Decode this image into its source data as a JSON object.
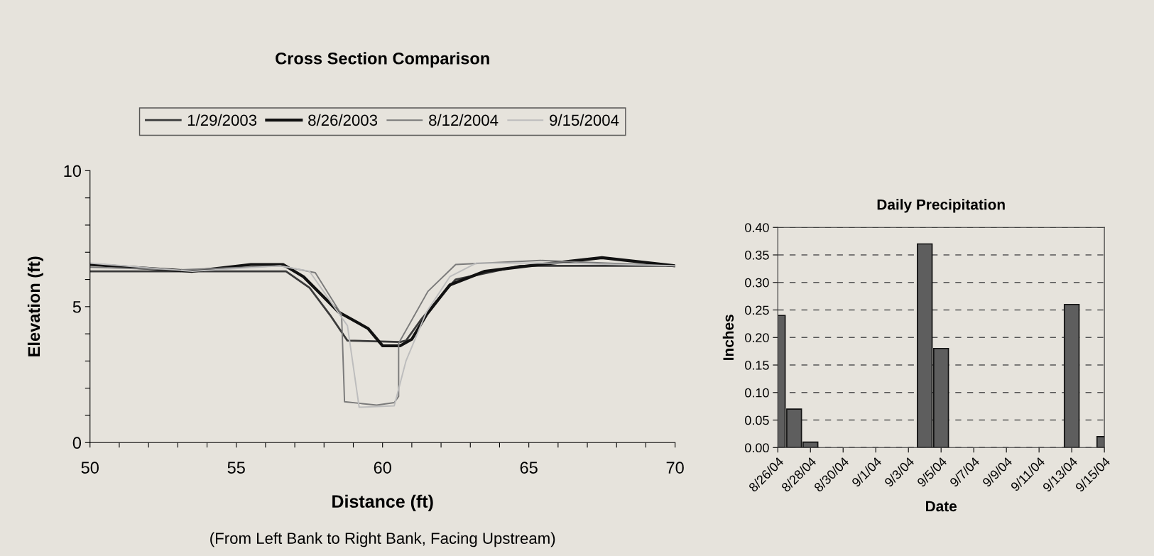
{
  "chart_data": [
    {
      "type": "line",
      "title": "Cross Section Comparison",
      "xlabel": "Distance (ft)",
      "ylabel": "Elevation (ft)",
      "annotations": [
        "(From Left Bank to Right Bank, Facing Upstream)"
      ],
      "legend": "top",
      "grid": false,
      "marker": "none",
      "line_style": "solid",
      "xlim": [
        50,
        70
      ],
      "ylim": [
        0,
        10
      ],
      "xticks": [
        50,
        {
          "value": 51,
          "label": null
        },
        {
          "value": 52,
          "label": null
        },
        {
          "value": 53,
          "label": null
        },
        {
          "value": 54,
          "label": null
        },
        55,
        {
          "value": 56,
          "label": null
        },
        {
          "value": 57,
          "label": null
        },
        {
          "value": 58,
          "label": null
        },
        {
          "value": 59,
          "label": null
        },
        60,
        {
          "value": 61,
          "label": null
        },
        {
          "value": 62,
          "label": null
        },
        {
          "value": 63,
          "label": null
        },
        {
          "value": 64,
          "label": null
        },
        65,
        {
          "value": 66,
          "label": null
        },
        {
          "value": 67,
          "label": null
        },
        {
          "value": 68,
          "label": null
        },
        {
          "value": 69,
          "label": null
        },
        70
      ],
      "yticks": [
        0,
        {
          "value": 1,
          "label": null
        },
        {
          "value": 2,
          "label": null
        },
        {
          "value": 3,
          "label": null
        },
        {
          "value": 4,
          "label": null
        },
        5,
        {
          "value": 6,
          "label": null
        },
        {
          "value": 7,
          "label": null
        },
        {
          "value": 8,
          "label": null
        },
        {
          "value": 9,
          "label": null
        },
        10
      ],
      "series": [
        {
          "name": "1/29/2003",
          "color": "#3a3a3a",
          "x": [
            50,
            56.7,
            57.5,
            58.2,
            58.8,
            60.6,
            60.8,
            61.3,
            62,
            62.5,
            64.7,
            70
          ],
          "values": [
            6.3,
            6.3,
            5.7,
            4.7,
            3.75,
            3.7,
            3.75,
            4.5,
            5.4,
            6.0,
            6.5,
            6.5
          ]
        },
        {
          "name": "8/26/2003",
          "color": "#111111",
          "x": [
            50,
            53.5,
            55.5,
            56.6,
            57.3,
            58.5,
            59.5,
            60,
            60.6,
            61,
            61.5,
            62.3,
            63.5,
            65,
            67.5,
            70
          ],
          "values": [
            6.55,
            6.3,
            6.55,
            6.55,
            6.1,
            4.8,
            4.2,
            3.56,
            3.56,
            3.8,
            4.7,
            5.8,
            6.3,
            6.5,
            6.8,
            6.5
          ]
        },
        {
          "name": "8/12/2004",
          "color": "#7a7a7a",
          "x": [
            50,
            53,
            56.5,
            57.7,
            58.6,
            58.7,
            59.8,
            60.4,
            60.55,
            60.55,
            61.55,
            62.5,
            65.4,
            70
          ],
          "values": [
            6.45,
            6.35,
            6.5,
            6.25,
            4.7,
            1.5,
            1.38,
            1.47,
            1.7,
            3.65,
            5.56,
            6.55,
            6.7,
            6.5
          ]
        },
        {
          "name": "9/15/2004",
          "color": "#bdbdbd",
          "x": [
            50,
            53.5,
            56.5,
            57.5,
            58.8,
            59.2,
            60.4,
            60.8,
            61.5,
            62.3,
            63.2,
            66,
            70
          ],
          "values": [
            6.6,
            6.3,
            6.5,
            6.3,
            4.3,
            1.3,
            1.35,
            3.0,
            4.8,
            6.1,
            6.6,
            6.6,
            6.5
          ]
        }
      ]
    },
    {
      "type": "bar",
      "title": "Daily Precipitation",
      "xlabel": "Date",
      "ylabel": "Inches",
      "grid": "y",
      "line_style": "dashed",
      "x": [
        "2004-08-26",
        "2004-08-27",
        "2004-08-28",
        "2004-08-29",
        "2004-08-30",
        "2004-08-31",
        "2004-09-01",
        "2004-09-02",
        "2004-09-03",
        "2004-09-04",
        "2004-09-05",
        "2004-09-06",
        "2004-09-07",
        "2004-09-08",
        "2004-09-09",
        "2004-09-10",
        "2004-09-11",
        "2004-09-12",
        "2004-09-13",
        "2004-09-14",
        "2004-09-15"
      ],
      "values": [
        0.24,
        0.07,
        0.01,
        0,
        0,
        0,
        0,
        0,
        0,
        0.37,
        0.18,
        0,
        0,
        0,
        0,
        0,
        0,
        0,
        0.26,
        0,
        0.02
      ],
      "color": "#5e5e5e",
      "xlim": [
        "2004-08-26",
        "2004-09-15"
      ],
      "ylim": [
        0,
        0.4
      ],
      "xticks": [
        {
          "value": "2004-08-26",
          "label": "8/26/04"
        },
        {
          "value": "2004-08-28",
          "label": "8/28/04"
        },
        {
          "value": "2004-08-30",
          "label": "8/30/04"
        },
        {
          "value": "2004-09-01",
          "label": "9/1/04"
        },
        {
          "value": "2004-09-03",
          "label": "9/3/04"
        },
        {
          "value": "2004-09-05",
          "label": "9/5/04"
        },
        {
          "value": "2004-09-07",
          "label": "9/7/04"
        },
        {
          "value": "2004-09-09",
          "label": "9/9/04"
        },
        {
          "value": "2004-09-11",
          "label": "9/11/04"
        },
        {
          "value": "2004-09-13",
          "label": "9/13/04"
        },
        {
          "value": "2004-09-15",
          "label": "9/15/04"
        }
      ],
      "yticks": [
        {
          "value": 0,
          "label": "0.00"
        },
        {
          "value": 0.05,
          "label": "0.05"
        },
        {
          "value": 0.1,
          "label": "0.10"
        },
        {
          "value": 0.15,
          "label": "0.15"
        },
        {
          "value": 0.2,
          "label": "0.20"
        },
        {
          "value": 0.25,
          "label": "0.25"
        },
        {
          "value": 0.3,
          "label": "0.30"
        },
        {
          "value": 0.35,
          "label": "0.35"
        },
        {
          "value": 0.4,
          "label": "0.40"
        }
      ]
    }
  ]
}
